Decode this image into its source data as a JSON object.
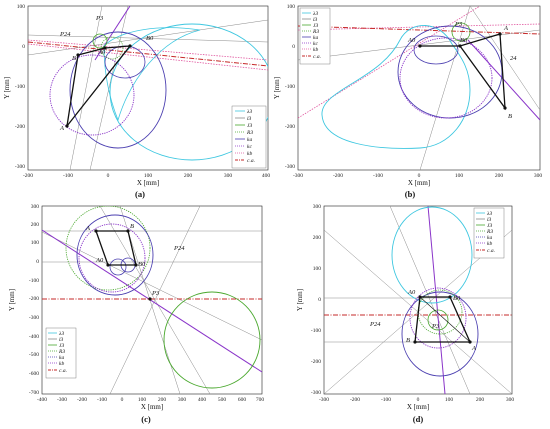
{
  "panels": [
    {
      "caption": "(a)",
      "xlabel": "X [mm]",
      "ylabel": "Y [mm]",
      "xticks": [
        "-200",
        "-100",
        "0",
        "100",
        "200",
        "300",
        "400"
      ],
      "yticks": [
        "100",
        "0",
        "-100",
        "-200",
        "-300"
      ],
      "annotations": [
        "P24",
        "P3",
        "B0",
        "A0",
        "A",
        "B"
      ],
      "legend": [
        "λ3",
        "l3",
        "J3",
        "R3",
        "ka",
        "kc",
        "kb",
        "c.a."
      ]
    },
    {
      "caption": "(b)",
      "xlabel": "X [mm]",
      "ylabel": "Y [mm]",
      "xticks": [
        "-300",
        "-200",
        "-100",
        "0",
        "100",
        "200",
        "300"
      ],
      "yticks": [
        "100",
        "0",
        "-100",
        "-200",
        "-300"
      ],
      "annotations": [
        "P3",
        "A0",
        "B0",
        "A",
        "B",
        "24"
      ],
      "legend": [
        "λ3",
        "l3",
        "J3",
        "R3",
        "ka",
        "kc",
        "kb",
        "c.a."
      ]
    },
    {
      "caption": "(c)",
      "xlabel": "X [mm]",
      "ylabel": "Y [mm]",
      "xticks": [
        "-400",
        "-300",
        "-200",
        "-100",
        "0",
        "100",
        "200",
        "300",
        "400",
        "500",
        "600",
        "700"
      ],
      "yticks": [
        "300",
        "200",
        "100",
        "0",
        "-100",
        "-200",
        "-300",
        "-400",
        "-500",
        "-600",
        "-700"
      ],
      "annotations": [
        "A",
        "B",
        "A0",
        "B0",
        "P3",
        "P24"
      ],
      "legend": [
        "λ3",
        "l3",
        "J3",
        "R3",
        "ka",
        "kb",
        "c.a."
      ]
    },
    {
      "caption": "(d)",
      "xlabel": "X [mm]",
      "ylabel": "Y [mm]",
      "xticks": [
        "-300",
        "-200",
        "-100",
        "0",
        "100",
        "200",
        "300"
      ],
      "yticks": [
        "300",
        "200",
        "100",
        "0",
        "-100",
        "-200",
        "-300"
      ],
      "annotations": [
        "A0",
        "B0",
        "P3",
        "B",
        "A",
        "P24"
      ],
      "legend": [
        "λ3",
        "l3",
        "J3",
        "R3",
        "ka",
        "kb",
        "c.a."
      ]
    }
  ],
  "colors": {
    "cyan": "#3ec7e0",
    "green": "#4aa82e",
    "blue": "#4b3fb0",
    "purple": "#8a35c9",
    "magenta": "#e0559e",
    "red": "#c62828",
    "gray": "#8a8a8a",
    "black": "#111111"
  }
}
